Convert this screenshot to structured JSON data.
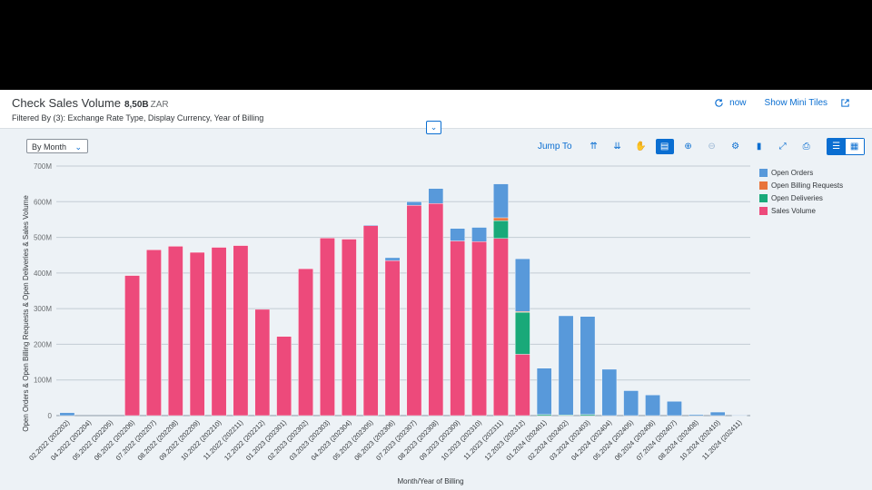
{
  "header": {
    "title": "Check Sales Volume",
    "total_value": "8,50B",
    "currency": "ZAR",
    "filtered_by": "Filtered By (3): Exchange Rate Type, Display Currency, Year of Billing",
    "refresh_label": "now",
    "mini_tiles_label": "Show Mini Tiles"
  },
  "controls": {
    "period_select": "By Month",
    "jump_to": "Jump To"
  },
  "icons": {
    "refresh": "refresh-icon",
    "share": "share-icon",
    "collapse": "chevron-down-icon",
    "toolbar": [
      "collapse-up-icon",
      "expand-down-icon",
      "hand-icon",
      "table-view-icon",
      "zoom-in-icon",
      "zoom-out-icon",
      "settings-icon",
      "chart-type-icon",
      "fullscreen-icon",
      "print-icon",
      "chart-view-icon",
      "grid-view-icon"
    ]
  },
  "colors": {
    "open_orders": "#5899da",
    "open_billing_requests": "#e8743b",
    "open_deliveries": "#19a979",
    "sales_volume": "#ed4a7b",
    "accent": "#0a6ed1"
  },
  "chart_data": {
    "type": "bar",
    "stacked": true,
    "xlabel": "Month/Year of Billing",
    "ylabel": "Open Orders & Open Billing Requests & Open Deliveries & Sales Volume",
    "ylim": [
      0,
      700
    ],
    "yticks": [
      "0",
      "100M",
      "200M",
      "300M",
      "400M",
      "500M",
      "600M",
      "700M"
    ],
    "grid": true,
    "legend_position": "top-right",
    "categories": [
      "02.2022 (202202)",
      "04.2022 (202204)",
      "05.2022 (202205)",
      "06.2022 (202206)",
      "07.2022 (202207)",
      "08.2022 (202208)",
      "09.2022 (202209)",
      "10.2022 (202210)",
      "11.2022 (202211)",
      "12.2022 (202212)",
      "01.2023 (202301)",
      "02.2023 (202302)",
      "03.2023 (202303)",
      "04.2023 (202304)",
      "05.2023 (202305)",
      "06.2023 (202306)",
      "07.2023 (202307)",
      "08.2023 (202308)",
      "09.2023 (202309)",
      "10.2023 (202310)",
      "11.2023 (202311)",
      "12.2023 (202312)",
      "01.2024 (202401)",
      "02.2024 (202402)",
      "03.2024 (202403)",
      "04.2024 (202404)",
      "05.2024 (202405)",
      "06.2024 (202406)",
      "07.2024 (202407)",
      "08.2024 (202408)",
      "10.2024 (202410)",
      "11.2024 (202411)"
    ],
    "series": [
      {
        "name": "Sales Volume",
        "values": [
          0,
          0,
          0,
          393,
          465,
          475,
          458,
          472,
          477,
          298,
          222,
          412,
          498,
          495,
          533,
          435,
          590,
          595,
          490,
          488,
          497,
          172,
          0,
          0,
          0,
          0,
          0,
          0,
          0,
          0,
          0,
          0
        ]
      },
      {
        "name": "Open Deliveries",
        "values": [
          0,
          0,
          0,
          0,
          0,
          0,
          0,
          0,
          0,
          0,
          0,
          0,
          0,
          0,
          0,
          0,
          0,
          0,
          0,
          0,
          50,
          118,
          3,
          2,
          3,
          0,
          0,
          0,
          0,
          0,
          0,
          0
        ]
      },
      {
        "name": "Open Billing Requests",
        "values": [
          0,
          0,
          0,
          0,
          0,
          0,
          0,
          0,
          0,
          0,
          0,
          0,
          0,
          0,
          0,
          0,
          0,
          0,
          0,
          0,
          8,
          2,
          0,
          0,
          0,
          0,
          0,
          0,
          0,
          0,
          0,
          0
        ]
      },
      {
        "name": "Open Orders",
        "values": [
          8,
          0,
          0,
          0,
          0,
          0,
          0,
          0,
          0,
          0,
          0,
          0,
          0,
          0,
          2,
          8,
          10,
          42,
          35,
          40,
          95,
          148,
          130,
          278,
          275,
          130,
          70,
          58,
          40,
          3,
          10,
          1
        ]
      }
    ],
    "legend": [
      "Open Orders",
      "Open Billing Requests",
      "Open Deliveries",
      "Sales Volume"
    ]
  }
}
